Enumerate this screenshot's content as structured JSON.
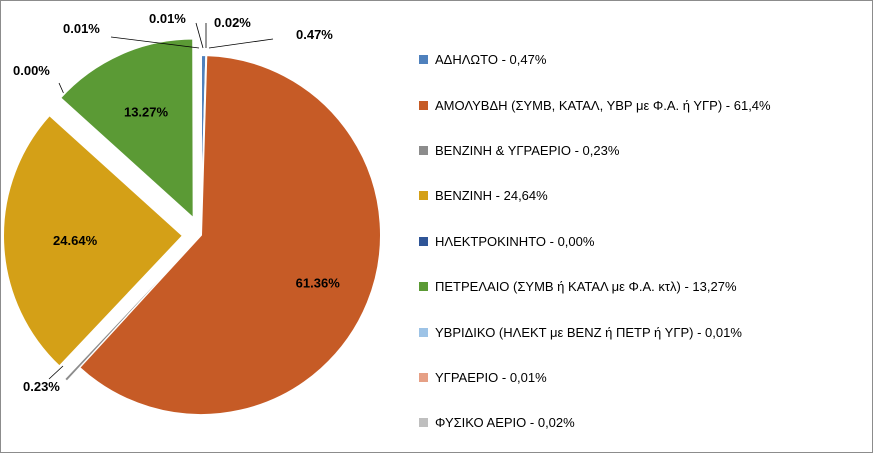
{
  "chart_data": {
    "type": "pie",
    "slices": [
      {
        "legend": "ΑΔΗΛΩΤΟ  - 0,47%",
        "value": 0.47,
        "label": "0.47%",
        "color": "#4f81bd"
      },
      {
        "legend": "ΑΜΟΛΥΒΔΗ (ΣΥΜΒ, ΚΑΤΑΛ, ΥΒΡ με Φ.Α. ή ΥΓΡ)  - 61,4%",
        "value": 61.36,
        "label": "61.36%",
        "color": "#c65b26"
      },
      {
        "legend": "ΒΕΝΖΙΝΗ & ΥΓΡΑΕΡΙΟ  - 0,23%",
        "value": 0.23,
        "label": "0.23%",
        "color": "#8c8c8c"
      },
      {
        "legend": "ΒΕΝΖΙΝΗ - 24,64%",
        "value": 24.64,
        "label": "24.64%",
        "color": "#d4a017"
      },
      {
        "legend": "ΗΛΕΚΤΡΟΚΙΝΗΤΟ  - 0,00%",
        "value": 0.0,
        "label": "0.00%",
        "color": "#2f5597"
      },
      {
        "legend": "ΠΕΤΡΕΛΑΙΟ (ΣΥΜΒ ή ΚΑΤΑΛ με Φ.Α. κτλ)  - 13,27%",
        "value": 13.27,
        "label": "13.27%",
        "color": "#5b9a35"
      },
      {
        "legend": "ΥΒΡΙΔΙΚΟ (ΗΛΕΚΤ με ΒΕΝΖ ή ΠΕΤΡ ή ΥΓΡ)  - 0,01%",
        "value": 0.01,
        "label": "0.01%",
        "color": "#9dc3e6"
      },
      {
        "legend": "ΥΓΡΑΕΡΙΟ  -  0,01%",
        "value": 0.01,
        "label": "0.01%",
        "color": "#e6a086"
      },
      {
        "legend": "ΦΥΣΙΚΟ ΑΕΡΙΟ  -  0,02%",
        "value": 0.02,
        "label": "0.02%",
        "color": "#bfbfbf"
      }
    ],
    "legend_position": "right"
  }
}
